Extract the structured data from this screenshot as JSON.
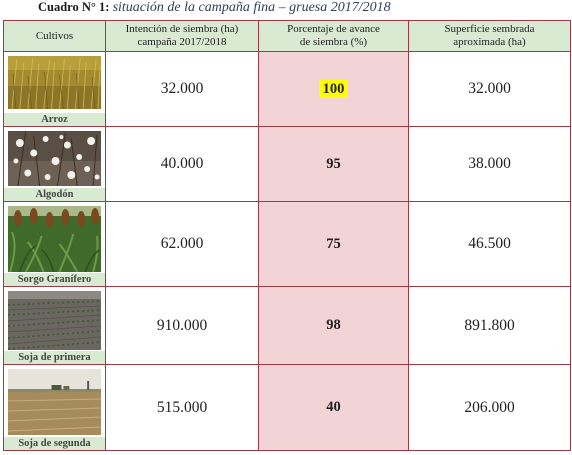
{
  "caption": {
    "prefix": "Cuadro N° 1",
    "separator": ": ",
    "title": "situación de la campaña fina – gruesa 2017/2018"
  },
  "table": {
    "headers": {
      "crop": "Cultivos",
      "intention_line1": "Intención de siembra (ha)",
      "intention_line2": "campaña 2017/2018",
      "progress_line1": "Porcentaje de avance",
      "progress_line2": "de siembra (%)",
      "area_line1": "Superficie sembrada",
      "area_line2": "aproximada (ha)"
    },
    "rows": [
      {
        "crop": "Arroz",
        "intention": "32.000",
        "progress": "100",
        "area": "32.000"
      },
      {
        "crop": "Algodón",
        "intention": "40.000",
        "progress": "95",
        "area": "38.000"
      },
      {
        "crop": "Sorgo Granífero",
        "intention": "62.000",
        "progress": "75",
        "area": "46.500"
      },
      {
        "crop": "Soja de primera",
        "intention": "910.000",
        "progress": "98",
        "area": "891.800"
      },
      {
        "crop": "Soja de segunda",
        "intention": "515.000",
        "progress": "40",
        "area": "206.000"
      }
    ]
  },
  "colors": {
    "header_bg": "#d9ead3",
    "progress_bg": "#f2d4d6",
    "border": "#9e3a44",
    "highlight": "#ffff00"
  }
}
